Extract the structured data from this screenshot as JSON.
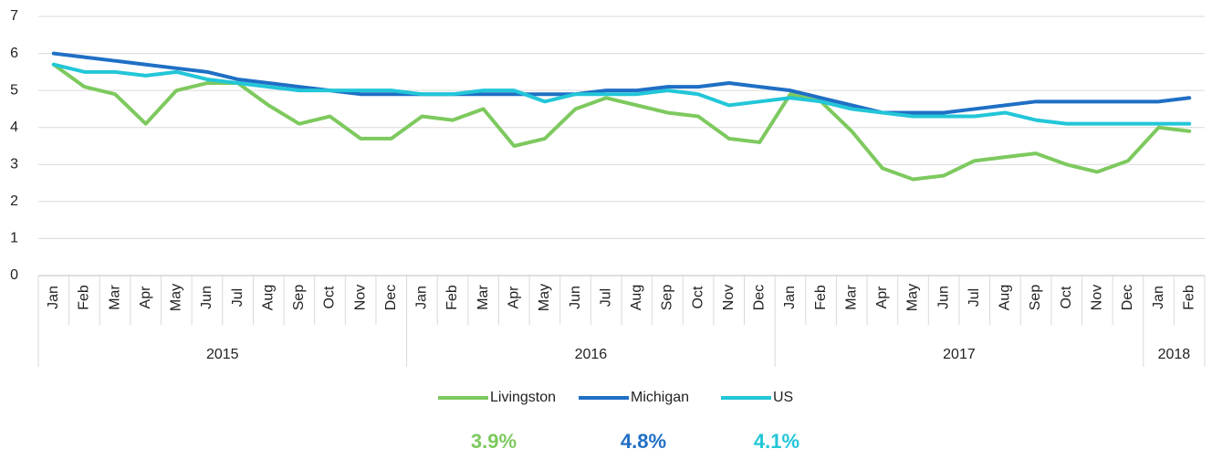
{
  "chart_data": {
    "type": "line",
    "categories": [
      "Jan",
      "Feb",
      "Mar",
      "Apr",
      "May",
      "Jun",
      "Jul",
      "Aug",
      "Sep",
      "Oct",
      "Nov",
      "Dec",
      "Jan",
      "Feb",
      "Mar",
      "Apr",
      "May",
      "Jun",
      "Jul",
      "Aug",
      "Sep",
      "Oct",
      "Nov",
      "Dec",
      "Jan",
      "Feb",
      "Mar",
      "Apr",
      "May",
      "Jun",
      "Jul",
      "Aug",
      "Sep",
      "Oct",
      "Nov",
      "Dec",
      "Jan",
      "Feb"
    ],
    "x_groups": [
      {
        "label": "2015",
        "count": 12
      },
      {
        "label": "2016",
        "count": 12
      },
      {
        "label": "2017",
        "count": 12
      },
      {
        "label": "2018",
        "count": 2
      }
    ],
    "series": [
      {
        "name": "Livingston",
        "color": "#7dc95e",
        "values": [
          5.7,
          5.1,
          4.9,
          4.1,
          5.0,
          5.2,
          5.2,
          4.6,
          4.1,
          4.3,
          3.7,
          3.7,
          4.3,
          4.2,
          4.5,
          3.5,
          3.7,
          4.5,
          4.8,
          4.6,
          4.4,
          4.3,
          3.7,
          3.6,
          4.9,
          4.7,
          3.9,
          2.9,
          2.6,
          2.7,
          3.1,
          3.2,
          3.3,
          3.0,
          2.8,
          3.1,
          4.0,
          3.9
        ]
      },
      {
        "name": "Michigan",
        "color": "#1f6fc5",
        "values": [
          6.0,
          5.9,
          5.8,
          5.7,
          5.6,
          5.5,
          5.3,
          5.2,
          5.1,
          5.0,
          4.9,
          4.9,
          4.9,
          4.9,
          4.9,
          4.9,
          4.9,
          4.9,
          5.0,
          5.0,
          5.1,
          5.1,
          5.2,
          5.1,
          5.0,
          4.8,
          4.6,
          4.4,
          4.4,
          4.4,
          4.5,
          4.6,
          4.7,
          4.7,
          4.7,
          4.7,
          4.7,
          4.8
        ]
      },
      {
        "name": "US",
        "color": "#22c6d8",
        "values": [
          5.7,
          5.5,
          5.5,
          5.4,
          5.5,
          5.3,
          5.2,
          5.1,
          5.0,
          5.0,
          5.0,
          5.0,
          4.9,
          4.9,
          5.0,
          5.0,
          4.7,
          4.9,
          4.9,
          4.9,
          5.0,
          4.9,
          4.6,
          4.7,
          4.8,
          4.7,
          4.5,
          4.4,
          4.3,
          4.3,
          4.3,
          4.4,
          4.2,
          4.1,
          4.1,
          4.1,
          4.1,
          4.1
        ]
      }
    ],
    "annotations": [
      {
        "value": 3.9,
        "label": "3.9%",
        "color": "#7dc95e"
      },
      {
        "value": 4.8,
        "label": "4.8%",
        "color": "#1f6fc5"
      },
      {
        "value": 4.1,
        "label": "4.1%",
        "color": "#22c6d8"
      }
    ],
    "ylim": [
      0,
      7
    ],
    "yticks": [
      0,
      1,
      2,
      3,
      4,
      5,
      6,
      7
    ],
    "grid": true,
    "legend": "bottom"
  }
}
